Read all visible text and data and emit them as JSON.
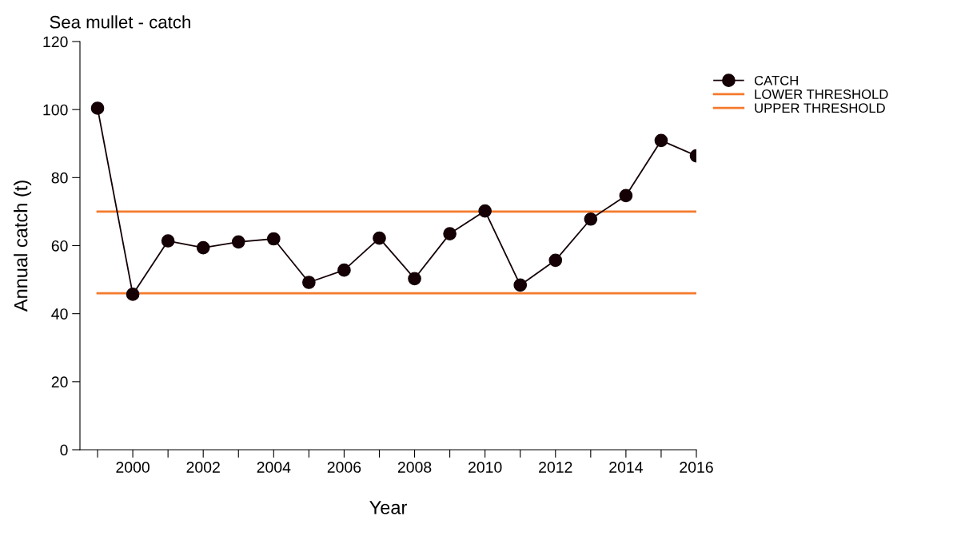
{
  "chart_data": {
    "type": "line",
    "title": "Sea mullet - catch",
    "xlabel": "Year",
    "ylabel": "Annual catch (t)",
    "x": [
      1999,
      2000,
      2001,
      2002,
      2003,
      2004,
      2005,
      2006,
      2007,
      2008,
      2009,
      2010,
      2011,
      2012,
      2013,
      2014,
      2015,
      2016
    ],
    "series": [
      {
        "name": "CATCH",
        "color": "#150005",
        "marker": "circle",
        "values": [
          100.4,
          45.7,
          61.4,
          59.4,
          61.1,
          62.0,
          49.2,
          52.8,
          62.2,
          50.3,
          63.5,
          70.2,
          48.4,
          55.7,
          67.8,
          74.7,
          90.9,
          86.4
        ]
      },
      {
        "name": "LOWER THRESHOLD",
        "color": "#f47a2c",
        "marker": "none",
        "values": [
          46,
          46,
          46,
          46,
          46,
          46,
          46,
          46,
          46,
          46,
          46,
          46,
          46,
          46,
          46,
          46,
          46,
          46
        ]
      },
      {
        "name": "UPPER THRESHOLD",
        "color": "#f47a2c",
        "marker": "none",
        "values": [
          70,
          70,
          70,
          70,
          70,
          70,
          70,
          70,
          70,
          70,
          70,
          70,
          70,
          70,
          70,
          70,
          70,
          70
        ]
      }
    ],
    "xlim": [
      1998.5,
      2016
    ],
    "ylim": [
      0,
      120
    ],
    "xticks": [
      {
        "value": 1999,
        "label": null
      },
      2000,
      {
        "value": 2001,
        "label": null
      },
      2002,
      {
        "value": 2003,
        "label": null
      },
      2004,
      {
        "value": 2005,
        "label": null
      },
      2006,
      {
        "value": 2007,
        "label": null
      },
      2008,
      {
        "value": 2009,
        "label": null
      },
      2010,
      {
        "value": 2011,
        "label": null
      },
      2012,
      {
        "value": 2013,
        "label": null
      },
      2014,
      {
        "value": 2015,
        "label": null
      },
      2016
    ],
    "yticks": [
      0,
      20,
      40,
      60,
      80,
      100,
      120
    ],
    "grid": false,
    "legend": "top right",
    "line_style": "solid"
  }
}
